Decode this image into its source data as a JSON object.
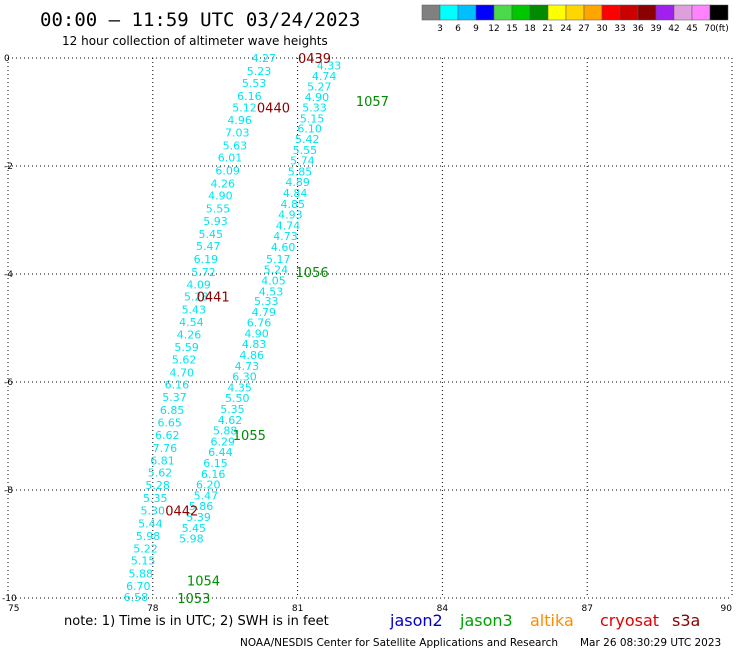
{
  "title": "00:00 – 11:59 UTC 03/24/2023",
  "subtitle": "12 hour collection of altimeter wave heights",
  "note": "note:  1) Time is in UTC; 2) SWH is in feet",
  "credit_left": "NOAA/NESDIS Center for Satellite Applications and Research",
  "credit_right": "Mar 26 08:30:29 UTC 2023",
  "colors": {
    "background": "#ffffff",
    "grid": "#000000",
    "swh_label": "#00e5ee",
    "time_old": "#8b0000",
    "time_new": "#008b00"
  },
  "legend": {
    "colors": [
      "#808080",
      "#00ffff",
      "#00bfff",
      "#0000ff",
      "#4cd94c",
      "#00c800",
      "#008b00",
      "#ffff00",
      "#ffd700",
      "#ffa500",
      "#ff0000",
      "#cd0000",
      "#8b0000",
      "#a020f0",
      "#dda0dd",
      "#ff82ff",
      "#000000"
    ],
    "labels": [
      "3",
      "6",
      "9",
      "12",
      "15",
      "18",
      "21",
      "24",
      "27",
      "30",
      "33",
      "36",
      "39",
      "42",
      "45",
      "70",
      "(ft)"
    ]
  },
  "satellites": [
    {
      "name": "jason2",
      "color": "#0000cd"
    },
    {
      "name": "jason3",
      "color": "#00a000"
    },
    {
      "name": "altika",
      "color": "#ff8c00"
    },
    {
      "name": "cryosat",
      "color": "#e00000"
    },
    {
      "name": "s3a",
      "color": "#8b0000"
    }
  ],
  "chart_data": {
    "type": "scatter",
    "title": "00:00 – 11:59 UTC 03/24/2023",
    "subtitle": "12 hour collection of altimeter wave heights",
    "xlim": [
      75,
      90
    ],
    "ylim": [
      -10,
      0
    ],
    "x_ticks": [
      "75",
      "78",
      "81",
      "84",
      "87",
      "90"
    ],
    "y_ticks": [
      "0",
      "-2",
      "-4",
      "-6",
      "-8",
      "-10"
    ],
    "grid": true,
    "series": [
      {
        "name": "cryosat",
        "swh_ft": [
          "4.27",
          "5.23",
          "5.53",
          "6.16",
          "5.12",
          "4.96",
          "7.03",
          "5.63",
          "6.01",
          "6.09",
          "4.26",
          "4.90",
          "5.55",
          "5.93",
          "5.45",
          "5.47",
          "6.19",
          "5.72",
          "4.09",
          "5.28",
          "5.43",
          "4.54",
          "4.26",
          "5.59",
          "5.62",
          "4.70",
          "6.16",
          "5.37",
          "6.85",
          "6.65",
          "6.62",
          "7.76",
          "6.81",
          "5.62",
          "5.28",
          "5.35",
          "5.30",
          "5.44",
          "5.98",
          "5.22",
          "5.15",
          "5.88",
          "6.70",
          "6.58"
        ],
        "points": [
          {
            "lon": 80.3,
            "lat": 0.0
          },
          {
            "lon": 80.2,
            "lat": -0.24
          },
          {
            "lon": 80.1,
            "lat": -0.46
          },
          {
            "lon": 80.0,
            "lat": -0.7
          },
          {
            "lon": 79.9,
            "lat": -0.92
          },
          {
            "lon": 79.8,
            "lat": -1.15
          },
          {
            "lon": 79.75,
            "lat": -1.38
          },
          {
            "lon": 79.7,
            "lat": -1.62
          },
          {
            "lon": 79.6,
            "lat": -1.84
          },
          {
            "lon": 79.55,
            "lat": -2.08
          },
          {
            "lon": 79.45,
            "lat": -2.32
          },
          {
            "lon": 79.4,
            "lat": -2.55
          },
          {
            "lon": 79.35,
            "lat": -2.79
          },
          {
            "lon": 79.3,
            "lat": -3.02
          },
          {
            "lon": 79.2,
            "lat": -3.26
          },
          {
            "lon": 79.15,
            "lat": -3.48
          },
          {
            "lon": 79.1,
            "lat": -3.72
          },
          {
            "lon": 79.05,
            "lat": -3.96
          },
          {
            "lon": 78.95,
            "lat": -4.19
          },
          {
            "lon": 78.9,
            "lat": -4.42
          },
          {
            "lon": 78.85,
            "lat": -4.66
          },
          {
            "lon": 78.8,
            "lat": -4.89
          },
          {
            "lon": 78.75,
            "lat": -5.12
          },
          {
            "lon": 78.7,
            "lat": -5.35
          },
          {
            "lon": 78.65,
            "lat": -5.58
          },
          {
            "lon": 78.6,
            "lat": -5.82
          },
          {
            "lon": 78.5,
            "lat": -6.05
          },
          {
            "lon": 78.45,
            "lat": -6.28
          },
          {
            "lon": 78.4,
            "lat": -6.52
          },
          {
            "lon": 78.35,
            "lat": -6.75
          },
          {
            "lon": 78.3,
            "lat": -6.98
          },
          {
            "lon": 78.25,
            "lat": -7.22
          },
          {
            "lon": 78.2,
            "lat": -7.45
          },
          {
            "lon": 78.15,
            "lat": -7.68
          },
          {
            "lon": 78.1,
            "lat": -7.91
          },
          {
            "lon": 78.05,
            "lat": -8.15
          },
          {
            "lon": 78.0,
            "lat": -8.38
          },
          {
            "lon": 77.95,
            "lat": -8.62
          },
          {
            "lon": 77.9,
            "lat": -8.85
          },
          {
            "lon": 77.85,
            "lat": -9.08
          },
          {
            "lon": 77.8,
            "lat": -9.31
          },
          {
            "lon": 77.75,
            "lat": -9.55
          },
          {
            "lon": 77.7,
            "lat": -9.78
          },
          {
            "lon": 77.65,
            "lat": -9.98
          }
        ]
      },
      {
        "name": "jason3",
        "swh_ft": [
          "4.33",
          "4.74",
          "5.27",
          "4.90",
          "5.33",
          "5.15",
          "6.10",
          "5.42",
          "5.55",
          "5.74",
          "5.85",
          "4.89",
          "4.84",
          "4.85",
          "4.93",
          "4.74",
          "4.73",
          "4.60",
          "5.17",
          "5.24",
          "4.05",
          "4.53",
          "5.33",
          "4.79",
          "6.76",
          "4.90",
          "4.83",
          "4.86",
          "4.73",
          "6.30",
          "4.35",
          "5.50",
          "5.35",
          "4.62",
          "5.88",
          "6.29",
          "6.44",
          "6.15",
          "6.16",
          "6.20",
          "5.47",
          "5.86",
          "5.39",
          "5.45",
          "5.98"
        ],
        "points": [
          {
            "lon": 81.65,
            "lat": -0.14
          },
          {
            "lon": 81.55,
            "lat": -0.33
          },
          {
            "lon": 81.45,
            "lat": -0.53
          },
          {
            "lon": 81.4,
            "lat": -0.72
          },
          {
            "lon": 81.35,
            "lat": -0.92
          },
          {
            "lon": 81.3,
            "lat": -1.12
          },
          {
            "lon": 81.25,
            "lat": -1.31
          },
          {
            "lon": 81.2,
            "lat": -1.5
          },
          {
            "lon": 81.15,
            "lat": -1.7
          },
          {
            "lon": 81.1,
            "lat": -1.9
          },
          {
            "lon": 81.05,
            "lat": -2.1
          },
          {
            "lon": 81.0,
            "lat": -2.3
          },
          {
            "lon": 80.95,
            "lat": -2.5
          },
          {
            "lon": 80.9,
            "lat": -2.7
          },
          {
            "lon": 80.85,
            "lat": -2.9
          },
          {
            "lon": 80.8,
            "lat": -3.1
          },
          {
            "lon": 80.75,
            "lat": -3.3
          },
          {
            "lon": 80.7,
            "lat": -3.5
          },
          {
            "lon": 80.6,
            "lat": -3.72
          },
          {
            "lon": 80.55,
            "lat": -3.92
          },
          {
            "lon": 80.5,
            "lat": -4.12
          },
          {
            "lon": 80.45,
            "lat": -4.32
          },
          {
            "lon": 80.35,
            "lat": -4.5
          },
          {
            "lon": 80.3,
            "lat": -4.7
          },
          {
            "lon": 80.2,
            "lat": -4.9
          },
          {
            "lon": 80.15,
            "lat": -5.1
          },
          {
            "lon": 80.1,
            "lat": -5.3
          },
          {
            "lon": 80.05,
            "lat": -5.5
          },
          {
            "lon": 79.95,
            "lat": -5.7
          },
          {
            "lon": 79.9,
            "lat": -5.9
          },
          {
            "lon": 79.8,
            "lat": -6.1
          },
          {
            "lon": 79.75,
            "lat": -6.3
          },
          {
            "lon": 79.65,
            "lat": -6.5
          },
          {
            "lon": 79.6,
            "lat": -6.7
          },
          {
            "lon": 79.5,
            "lat": -6.9
          },
          {
            "lon": 79.45,
            "lat": -7.1
          },
          {
            "lon": 79.4,
            "lat": -7.3
          },
          {
            "lon": 79.3,
            "lat": -7.5
          },
          {
            "lon": 79.25,
            "lat": -7.7
          },
          {
            "lon": 79.15,
            "lat": -7.9
          },
          {
            "lon": 79.1,
            "lat": -8.1
          },
          {
            "lon": 79.0,
            "lat": -8.3
          },
          {
            "lon": 78.95,
            "lat": -8.5
          },
          {
            "lon": 78.85,
            "lat": -8.7
          },
          {
            "lon": 78.8,
            "lat": -8.9
          }
        ]
      }
    ],
    "time_labels": [
      {
        "text": "0439",
        "lon": 81.35,
        "lat": 0.0,
        "color": "#8b0000"
      },
      {
        "text": "0440",
        "lon": 80.5,
        "lat": -0.92,
        "color": "#8b0000"
      },
      {
        "text": "0441",
        "lon": 79.25,
        "lat": -4.42,
        "color": "#8b0000"
      },
      {
        "text": "0442",
        "lon": 78.6,
        "lat": -8.38,
        "color": "#8b0000"
      },
      {
        "text": "1057",
        "lon": 82.55,
        "lat": -0.8,
        "color": "#008b00"
      },
      {
        "text": "1056",
        "lon": 81.3,
        "lat": -3.96,
        "color": "#008b00"
      },
      {
        "text": "1055",
        "lon": 80.0,
        "lat": -6.98,
        "color": "#008b00"
      },
      {
        "text": "1054",
        "lon": 79.05,
        "lat": -9.68,
        "color": "#008b00"
      },
      {
        "text": "1053",
        "lon": 78.85,
        "lat": -10.0,
        "color": "#008b00"
      }
    ]
  }
}
